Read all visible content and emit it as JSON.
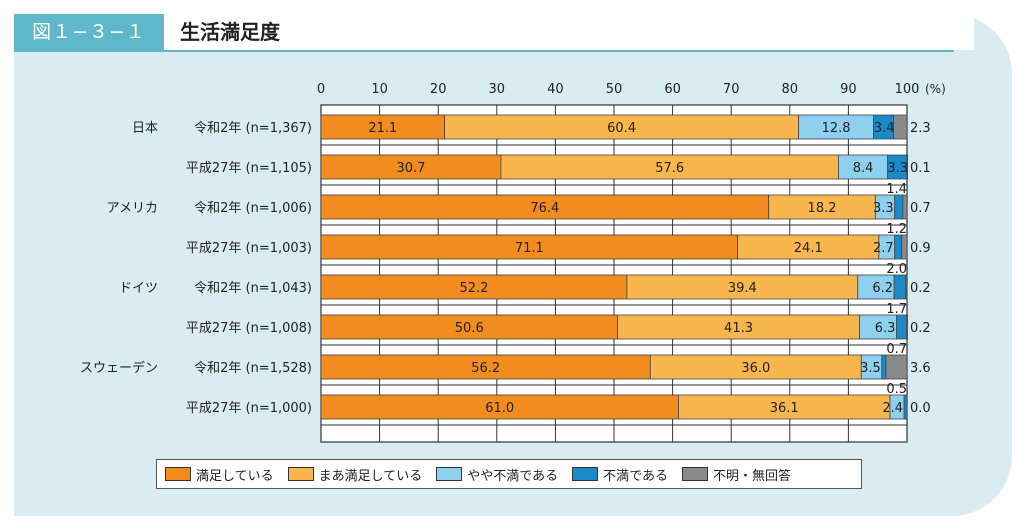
{
  "figure": {
    "label": "図１−３−１",
    "title": "生活満足度"
  },
  "chart_data": {
    "type": "bar",
    "orientation": "horizontal",
    "stacked": true,
    "xlim": [
      0,
      100
    ],
    "xticks": [
      "0",
      "10",
      "20",
      "30",
      "40",
      "50",
      "60",
      "70",
      "80",
      "90",
      "100"
    ],
    "unit": "(%)",
    "series": [
      {
        "name": "満足している",
        "color": "#f28c1e"
      },
      {
        "name": "まあ満足している",
        "color": "#f8b64c"
      },
      {
        "name": "やや不満である",
        "color": "#8fd0ef"
      },
      {
        "name": "不満である",
        "color": "#1a8ac9"
      },
      {
        "name": "不明・無回答",
        "color": "#8a8a8a"
      }
    ],
    "rows": [
      {
        "country": "日本",
        "label": "令和2年 (n=1,367)",
        "values": [
          21.1,
          60.4,
          12.8,
          3.4,
          2.3
        ],
        "texts": [
          "21.1",
          "60.4",
          "12.8",
          "3.4",
          "2.3"
        ]
      },
      {
        "country": "",
        "label": "平成27年 (n=1,105)",
        "values": [
          30.7,
          57.6,
          8.4,
          3.3,
          0.1
        ],
        "texts": [
          "30.7",
          "57.6",
          "8.4",
          "3.3",
          "0.1"
        ]
      },
      {
        "country": "アメリカ",
        "label": "令和2年 (n=1,006)",
        "values": [
          76.4,
          18.2,
          3.3,
          1.4,
          0.7
        ],
        "texts": [
          "76.4",
          "18.2",
          "3.3",
          "1.4",
          "0.7"
        ]
      },
      {
        "country": "",
        "label": "平成27年 (n=1,003)",
        "values": [
          71.1,
          24.1,
          2.7,
          1.2,
          0.9
        ],
        "texts": [
          "71.1",
          "24.1",
          "2.7",
          "1.2",
          "0.9"
        ]
      },
      {
        "country": "ドイツ",
        "label": "令和2年 (n=1,043)",
        "values": [
          52.2,
          39.4,
          6.2,
          2.0,
          0.2
        ],
        "texts": [
          "52.2",
          "39.4",
          "6.2",
          "2.0",
          "0.2"
        ]
      },
      {
        "country": "",
        "label": "平成27年 (n=1,008)",
        "values": [
          50.6,
          41.3,
          6.3,
          1.7,
          0.2
        ],
        "texts": [
          "50.6",
          "41.3",
          "6.3",
          "1.7",
          "0.2"
        ]
      },
      {
        "country": "スウェーデン",
        "label": "令和2年 (n=1,528)",
        "values": [
          56.2,
          36.0,
          3.5,
          0.7,
          3.6
        ],
        "texts": [
          "56.2",
          "36.0",
          "3.5",
          "0.7",
          "3.6"
        ]
      },
      {
        "country": "",
        "label": "平成27年 (n=1,000)",
        "values": [
          61.0,
          36.1,
          2.4,
          0.5,
          0.0
        ],
        "texts": [
          "61.0",
          "36.1",
          "2.4",
          "0.5",
          "0.0"
        ]
      }
    ],
    "legend_placement": "bottom"
  }
}
